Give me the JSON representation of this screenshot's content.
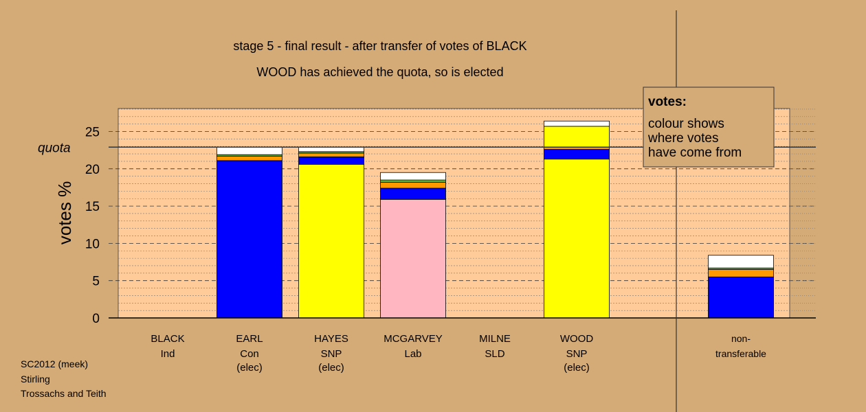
{
  "title_line1": "stage 5 - final result - after transfer of votes of BLACK",
  "title_line2": "WOOD has achieved the quota, so is elected",
  "ylabel": "votes %",
  "quota_label": "quota",
  "legend": {
    "title": "votes:",
    "lines": [
      "colour shows",
      "where votes",
      "have come from"
    ]
  },
  "footer": [
    "SC2012 (meek)",
    "Stirling",
    "Trossachs and Teith"
  ],
  "colors": {
    "background": "#d4aa77",
    "plot_area": "#ffcc99",
    "Con": "#0000ff",
    "SNP": "#ffff00",
    "Lab": "#ffb6c1",
    "SLD": "#ff9900",
    "Grn": "#66bb33",
    "Ind": "#ffffff"
  },
  "chart_data": {
    "type": "bar",
    "stacked": true,
    "title": "stage 5 - final result - after transfer of votes of BLACK",
    "subtitle": "WOOD has achieved the quota, so is elected",
    "ylabel": "votes %",
    "ylim": [
      0,
      28
    ],
    "yticks": [
      0,
      5,
      10,
      15,
      20,
      25
    ],
    "quota": 22.9,
    "grid": true,
    "candidates": [
      {
        "name": "BLACK",
        "party": "Ind",
        "status": ""
      },
      {
        "name": "EARL",
        "party": "Con",
        "status": "(elec)"
      },
      {
        "name": "HAYES",
        "party": "SNP",
        "status": "(elec)"
      },
      {
        "name": "MCGARVEY",
        "party": "Lab",
        "status": ""
      },
      {
        "name": "MILNE",
        "party": "SLD",
        "status": ""
      },
      {
        "name": "WOOD",
        "party": "SNP",
        "status": "(elec)"
      }
    ],
    "nontransferable": {
      "name": "non-",
      "party": "transferable",
      "status": ""
    },
    "stacks": [
      [],
      [
        {
          "from": "Con",
          "value": 21.1
        },
        {
          "from": "SLD",
          "value": 0.6
        },
        {
          "from": "Grn",
          "value": 0.2
        },
        {
          "from": "Ind",
          "value": 1.0
        }
      ],
      [
        {
          "from": "SNP",
          "value": 20.6
        },
        {
          "from": "Con",
          "value": 1.0
        },
        {
          "from": "SLD",
          "value": 0.5
        },
        {
          "from": "Grn",
          "value": 0.2
        },
        {
          "from": "Ind",
          "value": 0.6
        }
      ],
      [
        {
          "from": "Lab",
          "value": 15.9
        },
        {
          "from": "Con",
          "value": 1.5
        },
        {
          "from": "SLD",
          "value": 0.8
        },
        {
          "from": "Grn",
          "value": 0.3
        },
        {
          "from": "Ind",
          "value": 1.0
        }
      ],
      [],
      [
        {
          "from": "SNP",
          "value": 21.3
        },
        {
          "from": "Con",
          "value": 1.3
        },
        {
          "from": "SLD",
          "value": 0.3
        },
        {
          "from": "SNP",
          "value": 2.8
        },
        {
          "from": "Ind",
          "value": 0.7
        }
      ],
      [
        {
          "from": "Con",
          "value": 5.5
        },
        {
          "from": "SLD",
          "value": 1.0
        },
        {
          "from": "Grn",
          "value": 0.2
        },
        {
          "from": "Ind",
          "value": 1.7
        }
      ]
    ]
  }
}
